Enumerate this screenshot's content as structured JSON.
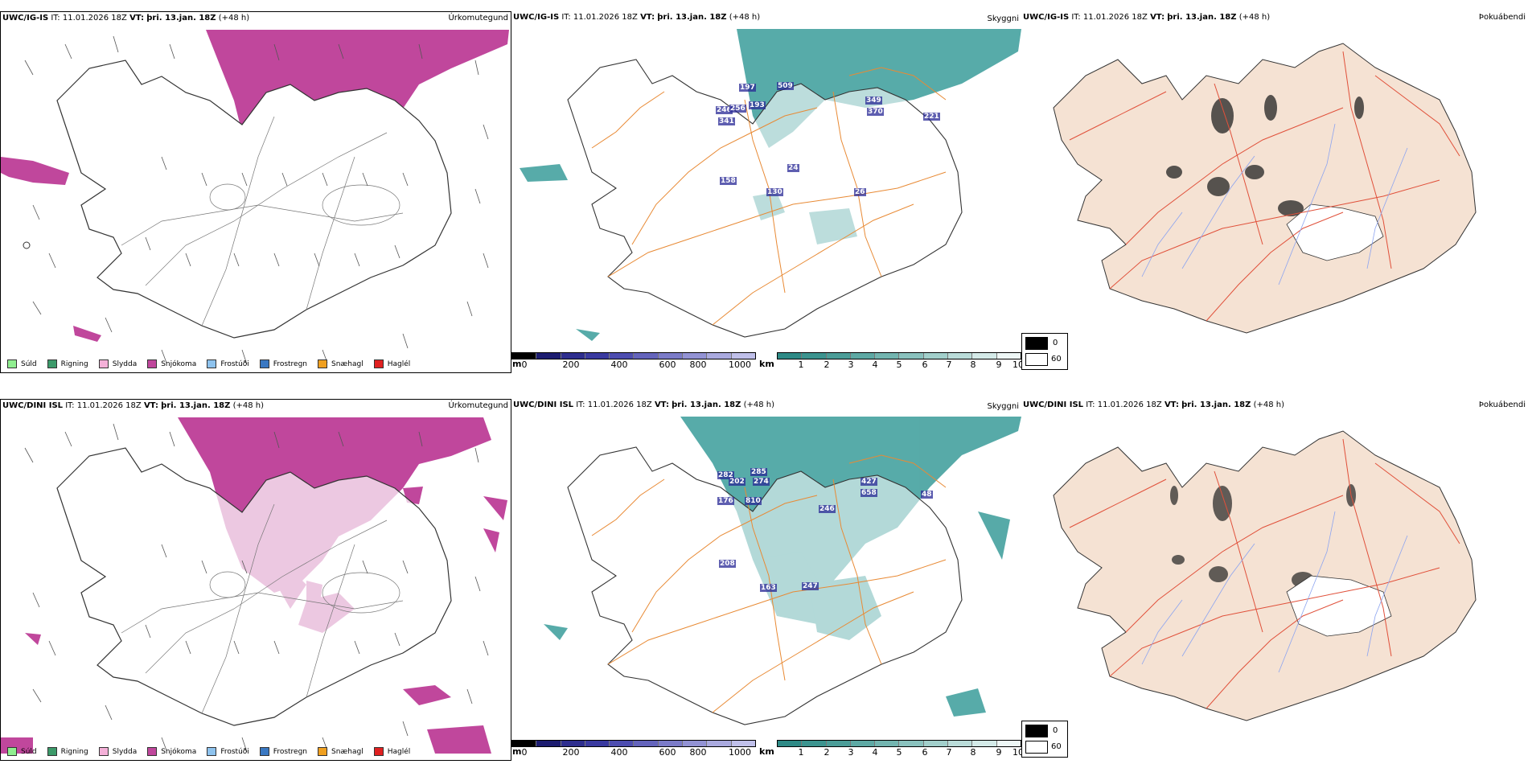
{
  "rows": [
    {
      "model": "UWC/IG-IS",
      "it_label": "IT:",
      "it_value": "11.01.2026 18Z",
      "vt_label": "VT:",
      "vt_value": "þri. 13.jan. 18Z",
      "lead": "(+48 h)",
      "titles": {
        "precip": "Úrkomutegund",
        "visibility": "Skyggni",
        "cloud": "Þokuábendi"
      },
      "visibility_labels": [
        "509",
        "197",
        "193",
        "246",
        "256",
        "341",
        "349",
        "370",
        "221",
        "158",
        "130",
        "24",
        "26"
      ]
    },
    {
      "model": "UWC/DINI ISL",
      "it_label": "IT:",
      "it_value": "11.01.2026 18Z",
      "vt_label": "VT:",
      "vt_value": "þri. 13.jan. 18Z",
      "lead": "(+48 h)",
      "titles": {
        "precip": "Úrkomutegund",
        "visibility": "Skyggni",
        "cloud": "Þokuábendi"
      },
      "visibility_labels": [
        "282",
        "202",
        "285",
        "274",
        "427",
        "658",
        "48",
        "176",
        "810",
        "246",
        "208",
        "163",
        "247"
      ]
    }
  ],
  "precip_legend": [
    {
      "label": "Súld",
      "color": "#90ee90"
    },
    {
      "label": "Rigning",
      "color": "#3c9a6a"
    },
    {
      "label": "Slydda",
      "color": "#f4b0d8"
    },
    {
      "label": "Snjókoma",
      "color": "#c0479c"
    },
    {
      "label": "Frostúði",
      "color": "#8ec3ee"
    },
    {
      "label": "Frostregn",
      "color": "#3a78c2"
    },
    {
      "label": "Snæhagl",
      "color": "#f0a020"
    },
    {
      "label": "Haglél",
      "color": "#e02020"
    }
  ],
  "height_bar": {
    "unit": "m",
    "ticks": [
      "0",
      "200",
      "400",
      "600",
      "800",
      "1000"
    ]
  },
  "visibility_bar": {
    "unit": "km",
    "ticks": [
      "1",
      "2",
      "3",
      "4",
      "5",
      "6",
      "7",
      "8",
      "9",
      "10"
    ]
  },
  "cloud_key": {
    "dark_value": "0",
    "light_value": "60"
  },
  "colors": {
    "snow": "#c0479c",
    "teal": "#3a9c9a",
    "road": "#e88a35",
    "land": "#f5e2d3",
    "river": "#8ca4f0",
    "roadred": "#e0503a"
  }
}
